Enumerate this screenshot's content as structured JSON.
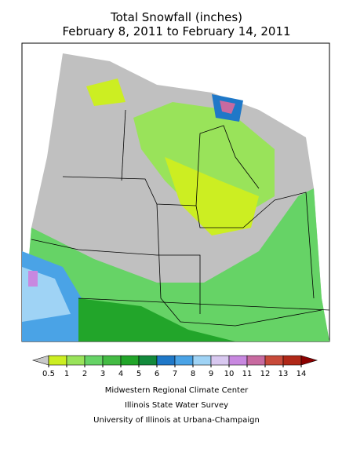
{
  "title": {
    "line1": "Total Snowfall (inches)",
    "line2": "February 8, 2011 to February 14, 2011"
  },
  "legend": {
    "ticks": [
      0.5,
      1,
      2,
      3,
      4,
      5,
      6,
      7,
      8,
      9,
      10,
      11,
      12,
      13,
      14
    ],
    "colors": [
      "#c8c8c8",
      "#ccee22",
      "#99e35a",
      "#66d366",
      "#44bb44",
      "#22a52a",
      "#138a3c",
      "#1f78c8",
      "#4aa3e6",
      "#9fd3f5",
      "#d8c8f0",
      "#c888e0",
      "#c86aa0",
      "#c84a3a",
      "#b02818",
      "#8b0000"
    ]
  },
  "credits": [
    "Midwestern Regional Climate Center",
    "Illinois State Water Survey",
    "University of Illinois at Urbana-Champaign"
  ]
}
